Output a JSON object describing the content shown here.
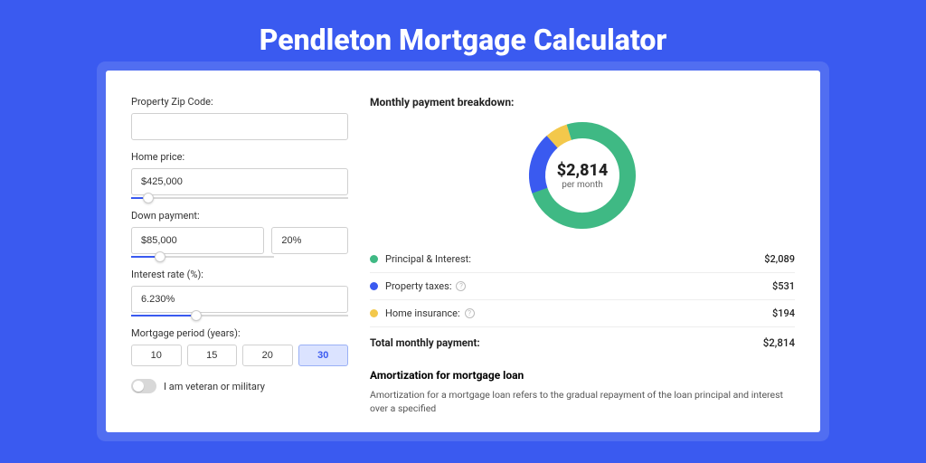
{
  "page": {
    "title": "Pendleton Mortgage Calculator"
  },
  "colors": {
    "accent": "#3a5af0",
    "seriesPrincipal": "#3fb984",
    "seriesTaxes": "#3a5af0",
    "seriesInsurance": "#f3c84b"
  },
  "form": {
    "zip": {
      "label": "Property Zip Code:",
      "value": ""
    },
    "homePrice": {
      "label": "Home price:",
      "value": "$425,000",
      "sliderPercent": 8
    },
    "downPayment": {
      "label": "Down payment:",
      "amount": "$85,000",
      "percent": "20%",
      "sliderPercent": 20
    },
    "interestRate": {
      "label": "Interest rate (%):",
      "value": "6.230%",
      "sliderPercent": 30
    },
    "period": {
      "label": "Mortgage period (years):",
      "options": [
        "10",
        "15",
        "20",
        "30"
      ],
      "activeIndex": 3
    },
    "veteran": {
      "label": "I am veteran or military",
      "on": false
    }
  },
  "breakdown": {
    "title": "Monthly payment breakdown:",
    "donut": {
      "amount": "$2,814",
      "sub": "per month",
      "slices": [
        {
          "key": "principal",
          "value": 2089,
          "percent": 74.2,
          "color": "#3fb984"
        },
        {
          "key": "taxes",
          "value": 531,
          "percent": 18.9,
          "color": "#3a5af0"
        },
        {
          "key": "insurance",
          "value": 194,
          "percent": 6.9,
          "color": "#f3c84b"
        }
      ],
      "strokeWidth": 18
    },
    "rows": [
      {
        "label": "Principal & Interest:",
        "value": "$2,089",
        "color": "#3fb984",
        "info": false
      },
      {
        "label": "Property taxes:",
        "value": "$531",
        "color": "#3a5af0",
        "info": true
      },
      {
        "label": "Home insurance:",
        "value": "$194",
        "color": "#f3c84b",
        "info": true
      }
    ],
    "total": {
      "label": "Total monthly payment:",
      "value": "$2,814"
    }
  },
  "amortization": {
    "title": "Amortization for mortgage loan",
    "text": "Amortization for a mortgage loan refers to the gradual repayment of the loan principal and interest over a specified"
  }
}
